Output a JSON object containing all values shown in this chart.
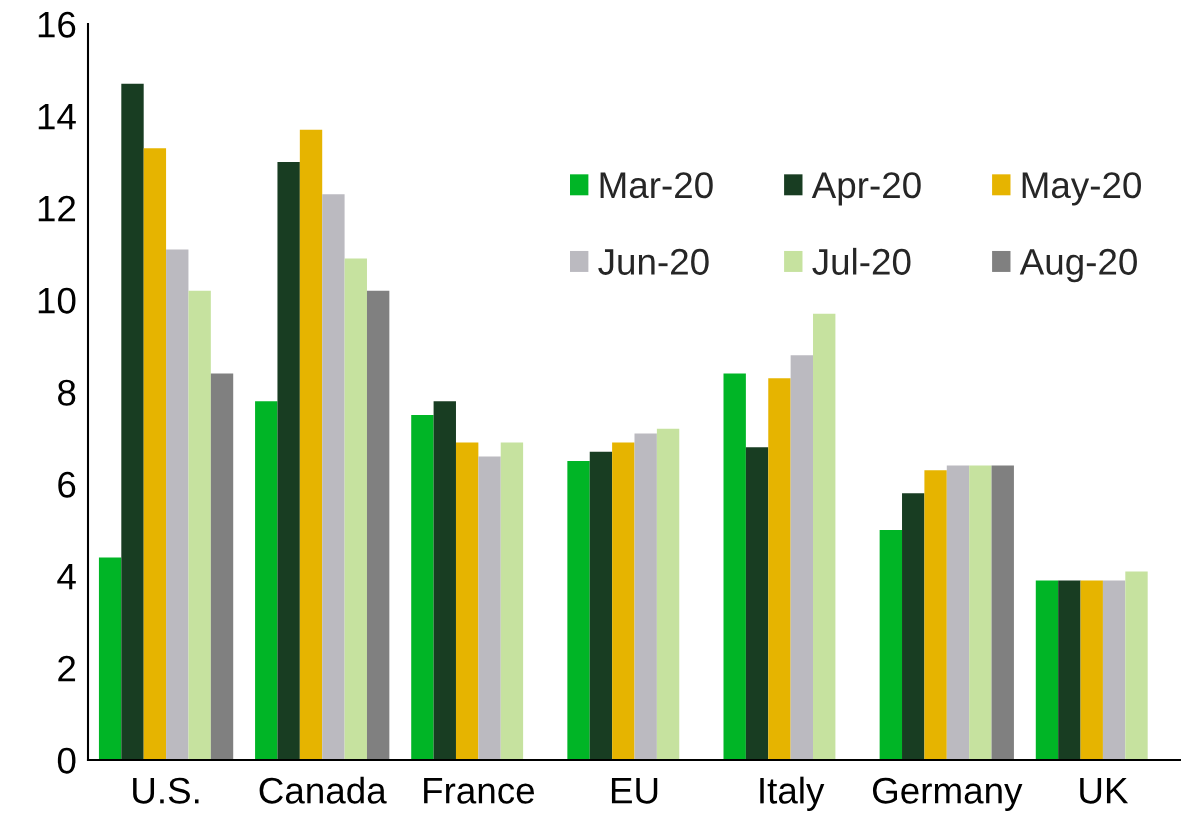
{
  "chart_data": {
    "type": "bar",
    "categories": [
      "U.S.",
      "Canada",
      "France",
      "EU",
      "Italy",
      "Germany",
      "UK"
    ],
    "series": [
      {
        "name": "Mar-20",
        "color": "#00b526",
        "values": [
          4.4,
          7.8,
          7.5,
          6.5,
          8.4,
          5.0,
          3.9
        ]
      },
      {
        "name": "Apr-20",
        "color": "#183d22",
        "values": [
          14.7,
          13.0,
          7.8,
          6.7,
          6.8,
          5.8,
          3.9
        ]
      },
      {
        "name": "May-20",
        "color": "#e6b400",
        "values": [
          13.3,
          13.7,
          6.9,
          6.9,
          8.3,
          6.3,
          3.9
        ]
      },
      {
        "name": "Jun-20",
        "color": "#bbbac0",
        "values": [
          11.1,
          12.3,
          6.6,
          7.1,
          8.8,
          6.4,
          3.9
        ]
      },
      {
        "name": "Jul-20",
        "color": "#c6e29f",
        "values": [
          10.2,
          10.9,
          6.9,
          7.2,
          9.7,
          6.4,
          4.1
        ]
      },
      {
        "name": "Aug-20",
        "color": "#808080",
        "values": [
          8.4,
          10.2,
          null,
          null,
          null,
          6.4,
          null
        ]
      }
    ],
    "ylim": [
      0,
      16
    ],
    "yticks": [
      0,
      2,
      4,
      6,
      8,
      10,
      12,
      14,
      16
    ],
    "grid": false,
    "legend": "top right"
  }
}
